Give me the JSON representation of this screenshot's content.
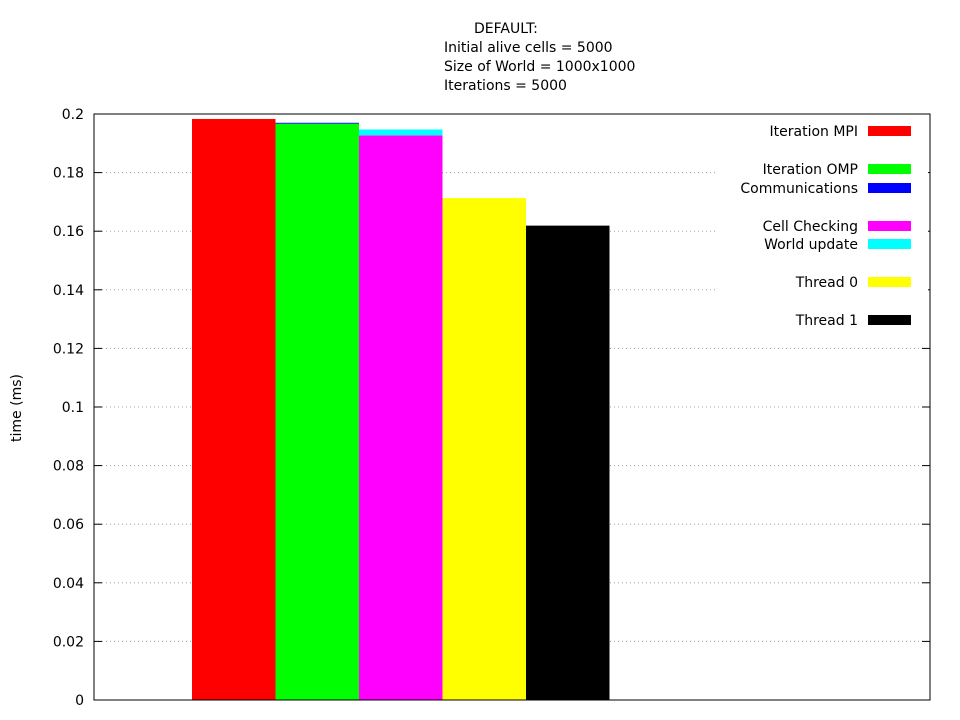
{
  "chart_data": {
    "type": "bar",
    "title_lines": [
      "DEFAULT:",
      "Initial alive cells = 5000",
      "Size of World = 1000x1000",
      "Iterations = 5000"
    ],
    "xlabel": "",
    "ylabel": "time (ms)",
    "ylim": [
      0,
      0.2
    ],
    "yticks": [
      "0",
      "0.02",
      "0.04",
      "0.06",
      "0.08",
      "0.1",
      "0.12",
      "0.14",
      "0.16",
      "0.18",
      "0.2"
    ],
    "grid": true,
    "legend_position": "top-right",
    "bars": [
      {
        "stack": [
          {
            "name": "Iteration MPI",
            "value": 0.1983,
            "color": "#ff0000"
          }
        ]
      },
      {
        "stack": [
          {
            "name": "Iteration OMP",
            "value": 0.1967,
            "color": "#00ff00"
          },
          {
            "name": "Communications",
            "value": 0.0003,
            "color": "#0000ff"
          }
        ]
      },
      {
        "stack": [
          {
            "name": "Cell Checking",
            "value": 0.1927,
            "color": "#ff00ff"
          },
          {
            "name": "World update",
            "value": 0.002,
            "color": "#00ffff"
          }
        ]
      },
      {
        "stack": [
          {
            "name": "Thread 0",
            "value": 0.1713,
            "color": "#ffff00"
          }
        ]
      },
      {
        "stack": [
          {
            "name": "Thread 1",
            "value": 0.1619,
            "color": "#000000"
          }
        ]
      }
    ],
    "legend": [
      {
        "name": "Iteration MPI",
        "color": "#ff0000"
      },
      {
        "name": "Iteration OMP",
        "color": "#00ff00"
      },
      {
        "name": "Communications",
        "color": "#0000ff"
      },
      {
        "name": "Cell Checking",
        "color": "#ff00ff"
      },
      {
        "name": "World update",
        "color": "#00ffff"
      },
      {
        "name": "Thread 0",
        "color": "#ffff00"
      },
      {
        "name": "Thread 1",
        "color": "#000000"
      }
    ]
  }
}
